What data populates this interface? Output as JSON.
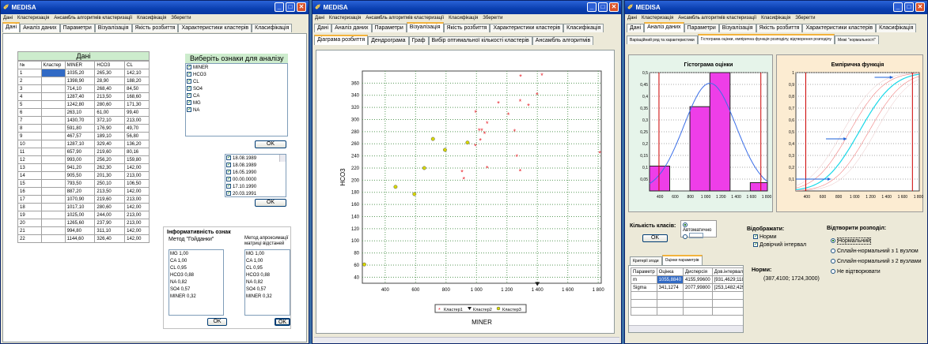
{
  "app": {
    "title": "MEDISA",
    "menu": [
      "Дані",
      "Кластеризація",
      "Ансамбль алгоритмів кластеризації",
      "Класифікація",
      "Зберегти"
    ]
  },
  "main_tabs": [
    "Дані",
    "Аналіз даних",
    "Параметри",
    "Візуалізація",
    "Якість розбиття",
    "Характеристики кластерів",
    "Класифікація"
  ],
  "w1": {
    "data_title": "Дані",
    "columns": [
      "№",
      "Кластер",
      "MINER",
      "HCO3",
      "CL"
    ],
    "rows": [
      [
        "1",
        "",
        "1035,20",
        "265,30",
        "142,10"
      ],
      [
        "2",
        "",
        "1398,90",
        "28,90",
        "188,20"
      ],
      [
        "3",
        "",
        "714,10",
        "268,40",
        "84,50"
      ],
      [
        "4",
        "",
        "1287,40",
        "213,50",
        "168,60"
      ],
      [
        "5",
        "",
        "1242,80",
        "280,60",
        "171,30"
      ],
      [
        "6",
        "",
        "263,10",
        "61,00",
        "99,40"
      ],
      [
        "7",
        "",
        "1430,70",
        "372,10",
        "213,00"
      ],
      [
        "8",
        "",
        "591,80",
        "176,90",
        "49,70"
      ],
      [
        "9",
        "",
        "467,57",
        "189,10",
        "56,80"
      ],
      [
        "10",
        "",
        "1287,10",
        "329,40",
        "136,20"
      ],
      [
        "11",
        "",
        "657,90",
        "219,60",
        "80,16"
      ],
      [
        "12",
        "",
        "993,00",
        "256,20",
        "159,80"
      ],
      [
        "13",
        "",
        "941,20",
        "262,30",
        "142,00"
      ],
      [
        "14",
        "",
        "905,50",
        "201,30",
        "213,00"
      ],
      [
        "15",
        "",
        "793,50",
        "250,10",
        "106,50"
      ],
      [
        "16",
        "",
        "887,20",
        "213,50",
        "142,00"
      ],
      [
        "17",
        "",
        "1070,90",
        "219,60",
        "213,00"
      ],
      [
        "18",
        "",
        "1017,10",
        "280,60",
        "142,00"
      ],
      [
        "19",
        "",
        "1025,00",
        "244,00",
        "213,00"
      ],
      [
        "20",
        "",
        "1265,60",
        "237,90",
        "213,00"
      ],
      [
        "21",
        "",
        "994,80",
        "311,10",
        "142,00"
      ],
      [
        "22",
        "",
        "1144,60",
        "326,40",
        "142,00"
      ]
    ],
    "features_title": "Виберіть ознаки для аналізу",
    "features": [
      "MINER",
      "HCO3",
      "CL",
      "SO4",
      "CA",
      "MG",
      "NA"
    ],
    "ok": "OK",
    "dates": [
      "18.08.1989",
      "18.08.1989",
      "16.05.1990",
      "00.00.0000",
      "17.10.1990",
      "20.03.1991"
    ],
    "info_title": "Інформативність ознак",
    "method1": "Метод \"Гойданки\"",
    "method2": "Метод апроксимації матриці відстаней",
    "list1": [
      "MG 1,00",
      "CA 1,00",
      "CL 0,95",
      "HCO3 0,88",
      "NA 0,82",
      "SO4 0,57",
      "MINER 0,32"
    ],
    "list2": [
      "MG 1,00",
      "CA 1,00",
      "CL 0,95",
      "HCO3 0,88",
      "NA 0,82",
      "SO4 0,57",
      "MINER 0,32"
    ]
  },
  "w2": {
    "sub_tabs": [
      "Діаграма розбиття",
      "Дендрограма",
      "Граф",
      "Вибір оптимальної кількості кластерів",
      "Ансамбль алгоритмів"
    ]
  },
  "chart_data": {
    "type": "scatter",
    "xlabel": "MINER",
    "ylabel": "HCO3",
    "xlim": [
      250,
      1820
    ],
    "ylim": [
      30,
      380
    ],
    "xticks": [
      400,
      600,
      800,
      1000,
      1200,
      1400,
      1600,
      1800
    ],
    "yticks": [
      40,
      60,
      80,
      100,
      120,
      140,
      160,
      180,
      200,
      220,
      240,
      260,
      280,
      300,
      320,
      340,
      360
    ],
    "series": [
      {
        "name": "Кластер1",
        "marker": "star",
        "color": "#e8202a",
        "points": [
          [
            1290,
            370
          ],
          [
            1430,
            372
          ],
          [
            1398,
            340
          ],
          [
            1287,
            329
          ],
          [
            1342,
            322
          ],
          [
            994,
            311
          ],
          [
            1210,
            307
          ],
          [
            1144,
            326
          ],
          [
            1070,
            293
          ],
          [
            1035,
            281
          ],
          [
            1250,
            280
          ],
          [
            1018,
            281
          ],
          [
            1053,
            276
          ],
          [
            993,
            256
          ],
          [
            1025,
            265
          ],
          [
            1265,
            238
          ],
          [
            1810,
            244
          ],
          [
            1287,
            214
          ],
          [
            1070,
            219
          ],
          [
            905,
            213
          ],
          [
            917,
            201
          ]
        ]
      },
      {
        "name": "Кластер2",
        "marker": "triangle",
        "color": "#1a1a1a",
        "points": [
          [
            1400,
            28
          ]
        ]
      },
      {
        "name": "Кластер3",
        "marker": "circle",
        "color": "#d8d800",
        "points": [
          [
            714,
            268
          ],
          [
            793,
            250
          ],
          [
            941,
            262
          ],
          [
            657,
            220
          ],
          [
            468,
            189
          ],
          [
            592,
            177
          ],
          [
            263,
            61
          ]
        ]
      }
    ],
    "legend": "bottom"
  },
  "w3": {
    "sub_tabs": [
      "Варіаційний ряд та характеристики",
      "Гістограма оцінки, емпірична функція розподілу, відтворення розподілу",
      "Межі \"нормальності\""
    ],
    "hist": {
      "title": "Гістограма оцінки",
      "xticks": [
        400,
        600,
        800,
        1000,
        1200,
        1400,
        1600,
        1800
      ],
      "yticks": [
        0.05,
        0.1,
        0.15,
        0.2,
        0.25,
        0.3,
        0.35,
        0.4,
        0.45,
        0.5
      ],
      "bins": [
        [
          263,
          528,
          0.105
        ],
        [
          793,
          1055,
          0.356
        ],
        [
          1055,
          1320,
          0.5
        ],
        [
          1585,
          1810,
          0.035
        ]
      ],
      "xlim": [
        263,
        1810
      ],
      "ylim": [
        0,
        0.5
      ]
    },
    "ecdf": {
      "title": "Емпірична функція",
      "xticks": [
        400,
        600,
        800,
        1000,
        1200,
        1400,
        1600,
        1800
      ],
      "yticks": [
        0.1,
        0.2,
        0.3,
        0.4,
        0.5,
        0.6,
        0.7,
        0.8,
        0.9,
        1
      ],
      "xlim": [
        263,
        1810
      ],
      "ylim": [
        0,
        1
      ]
    },
    "classes_label": "Кількість класів:",
    "auto": "Автоматично",
    "ok": "OK",
    "show_label": "Відображати:",
    "norm": "Норми",
    "conf": "Довірчий інтервал",
    "restore_label": "Відтворити розподіл:",
    "restore": [
      "Нормальний",
      "Сплайн-нормальний з 1 вузлом",
      "Сплайн-нормальний з 2 вузлами",
      "Не відтворювати"
    ],
    "tabs2": [
      "Критерії згоди",
      "Оцінки параметрів"
    ],
    "param_cols": [
      "Параметр",
      "Оцінка",
      "Дисперсія",
      "Дов.інтервал"
    ],
    "param_rows": [
      [
        "m",
        "1055,8840",
        "4155,99600",
        "[931,4629;1180,306"
      ],
      [
        "Sigma",
        "341,1274",
        "2077,99800",
        "[253,1482;429,1065"
      ]
    ],
    "norms_label": "Норми:",
    "norms_value": "(387,4100; 1724,3000)"
  }
}
